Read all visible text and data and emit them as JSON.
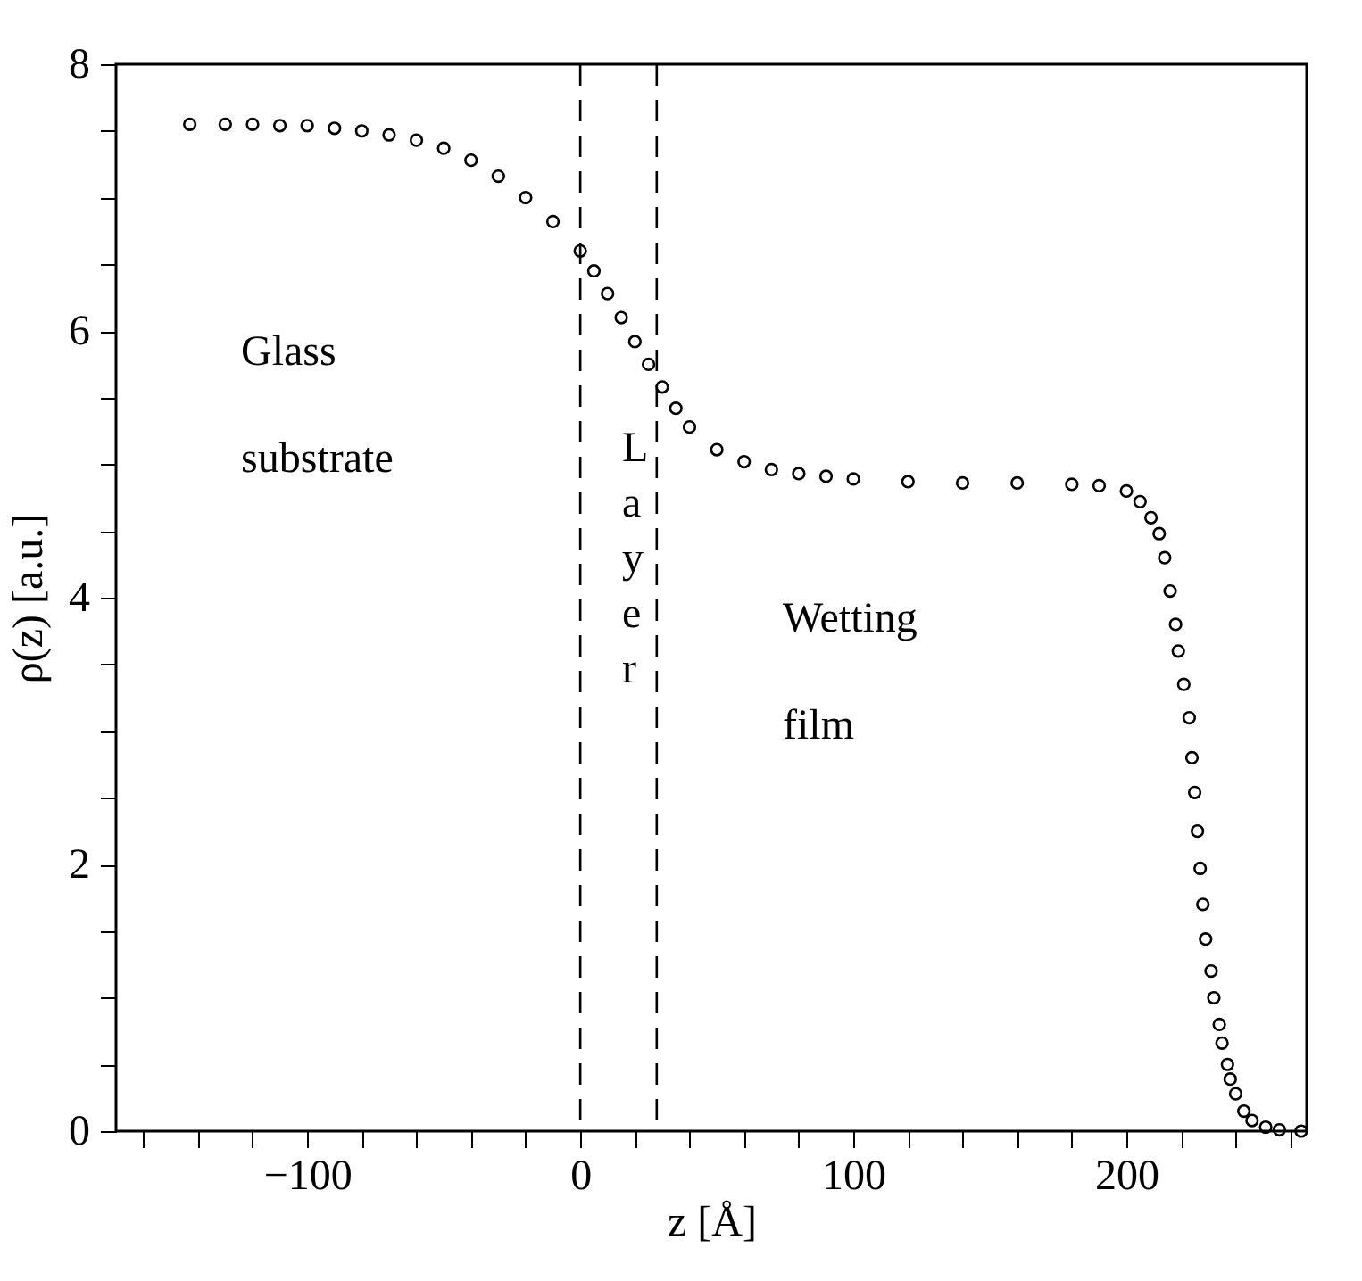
{
  "chart_data": {
    "type": "scatter",
    "xlabel": "z [Å]",
    "ylabel": "ρ(z) [a.u.]",
    "annotations": [
      "Glass substrate",
      "Layer",
      "Wetting film"
    ],
    "x": [
      -143,
      -130,
      -120,
      -110,
      -100,
      -90,
      -80,
      -70,
      -60,
      -50,
      -40,
      -30,
      -20,
      -10,
      0,
      5,
      10,
      15,
      20,
      25,
      30,
      35,
      40,
      50,
      60,
      70,
      80,
      90,
      100,
      120,
      140,
      160,
      180,
      190,
      200,
      205,
      209,
      212,
      214,
      216,
      218,
      219,
      221,
      223,
      224,
      225,
      226,
      227,
      228,
      229,
      231,
      232,
      234,
      235,
      237,
      238,
      240,
      243,
      246,
      251,
      256,
      264
    ],
    "series": [
      {
        "color": "#000000",
        "values": [
          7.55,
          7.55,
          7.55,
          7.54,
          7.54,
          7.52,
          7.5,
          7.47,
          7.43,
          7.37,
          7.28,
          7.16,
          7.0,
          6.82,
          6.6,
          6.45,
          6.28,
          6.1,
          5.92,
          5.75,
          5.58,
          5.42,
          5.28,
          5.11,
          5.02,
          4.96,
          4.93,
          4.91,
          4.89,
          4.87,
          4.86,
          4.86,
          4.85,
          4.84,
          4.8,
          4.72,
          4.6,
          4.48,
          4.3,
          4.05,
          3.8,
          3.6,
          3.35,
          3.1,
          2.8,
          2.54,
          2.25,
          1.97,
          1.7,
          1.44,
          1.2,
          1.0,
          0.8,
          0.66,
          0.5,
          0.39,
          0.28,
          0.15,
          0.08,
          0.03,
          0.01,
          0
        ]
      }
    ],
    "marker": "circle",
    "grid": false,
    "ref_lines": [
      {
        "axis": "x",
        "value": 0,
        "line_style": "dashed"
      },
      {
        "axis": "x",
        "value": 28,
        "line_style": "dashed"
      }
    ],
    "xlim": [
      -170,
      266
    ],
    "xticks": [
      {
        "value": -160,
        "label": null
      },
      {
        "value": -140,
        "label": null
      },
      {
        "value": -120,
        "label": null
      },
      -100,
      {
        "value": -80,
        "label": null
      },
      {
        "value": -60,
        "label": null
      },
      {
        "value": -40,
        "label": null
      },
      {
        "value": -20,
        "label": null
      },
      0,
      {
        "value": 20,
        "label": null
      },
      {
        "value": 40,
        "label": null
      },
      {
        "value": 60,
        "label": null
      },
      {
        "value": 80,
        "label": null
      },
      100,
      {
        "value": 120,
        "label": null
      },
      {
        "value": 140,
        "label": null
      },
      {
        "value": 160,
        "label": null
      },
      {
        "value": 180,
        "label": null
      },
      200,
      {
        "value": 220,
        "label": null
      },
      {
        "value": 240,
        "label": null
      },
      {
        "value": 260,
        "label": null
      }
    ],
    "ylim": [
      0,
      8
    ],
    "yticks": [
      0,
      {
        "value": 0.5,
        "label": null
      },
      {
        "value": 1,
        "label": null
      },
      {
        "value": 1.5,
        "label": null
      },
      2,
      {
        "value": 2.5,
        "label": null
      },
      {
        "value": 3,
        "label": null
      },
      {
        "value": 3.5,
        "label": null
      },
      4,
      {
        "value": 4.5,
        "label": null
      },
      {
        "value": 5,
        "label": null
      },
      {
        "value": 5.5,
        "label": null
      },
      6,
      {
        "value": 6.5,
        "label": null
      },
      {
        "value": 7,
        "label": null
      },
      {
        "value": 7.5,
        "label": null
      },
      8
    ]
  }
}
